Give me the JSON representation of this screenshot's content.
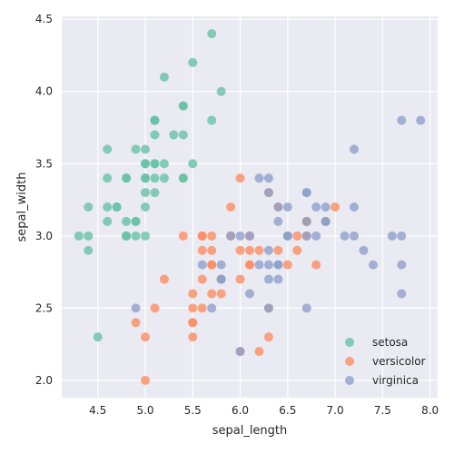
{
  "chart_data": {
    "type": "scatter",
    "xlabel": "sepal_length",
    "ylabel": "sepal_width",
    "xlim": [
      4.12,
      8.08
    ],
    "ylim": [
      1.88,
      4.52
    ],
    "xticks": [
      4.5,
      5.0,
      5.5,
      6.0,
      6.5,
      7.0,
      7.5,
      8.0
    ],
    "xtick_labels": [
      "4.5",
      "5.0",
      "5.5",
      "6.0",
      "6.5",
      "7.0",
      "7.5",
      "8.0"
    ],
    "yticks": [
      2.0,
      2.5,
      3.0,
      3.5,
      4.0,
      4.5
    ],
    "ytick_labels": [
      "2.0",
      "2.5",
      "3.0",
      "3.5",
      "4.0",
      "4.5"
    ],
    "grid": true,
    "background_color": "#eaeaf2",
    "legend": {
      "placement": "lower-right",
      "entries": [
        "setosa",
        "versicolor",
        "virginica"
      ]
    },
    "series": [
      {
        "name": "setosa",
        "color": "#66c2a5",
        "points": [
          [
            5.1,
            3.5
          ],
          [
            4.9,
            3.0
          ],
          [
            4.7,
            3.2
          ],
          [
            4.6,
            3.1
          ],
          [
            5.0,
            3.6
          ],
          [
            5.4,
            3.9
          ],
          [
            4.6,
            3.4
          ],
          [
            5.0,
            3.4
          ],
          [
            4.4,
            2.9
          ],
          [
            4.9,
            3.1
          ],
          [
            5.4,
            3.7
          ],
          [
            4.8,
            3.4
          ],
          [
            4.8,
            3.0
          ],
          [
            4.3,
            3.0
          ],
          [
            5.8,
            4.0
          ],
          [
            5.7,
            4.4
          ],
          [
            5.4,
            3.9
          ],
          [
            5.1,
            3.5
          ],
          [
            5.7,
            3.8
          ],
          [
            5.1,
            3.8
          ],
          [
            5.4,
            3.4
          ],
          [
            5.1,
            3.7
          ],
          [
            4.6,
            3.6
          ],
          [
            5.1,
            3.3
          ],
          [
            4.8,
            3.4
          ],
          [
            5.0,
            3.0
          ],
          [
            5.0,
            3.4
          ],
          [
            5.2,
            3.5
          ],
          [
            5.2,
            3.4
          ],
          [
            4.7,
            3.2
          ],
          [
            4.8,
            3.1
          ],
          [
            5.4,
            3.4
          ],
          [
            5.2,
            4.1
          ],
          [
            5.5,
            4.2
          ],
          [
            4.9,
            3.1
          ],
          [
            5.0,
            3.2
          ],
          [
            5.5,
            3.5
          ],
          [
            4.9,
            3.6
          ],
          [
            4.4,
            3.0
          ],
          [
            5.1,
            3.4
          ],
          [
            5.0,
            3.5
          ],
          [
            4.5,
            2.3
          ],
          [
            4.4,
            3.2
          ],
          [
            5.0,
            3.5
          ],
          [
            5.1,
            3.8
          ],
          [
            4.8,
            3.0
          ],
          [
            5.1,
            3.8
          ],
          [
            4.6,
            3.2
          ],
          [
            5.3,
            3.7
          ],
          [
            5.0,
            3.3
          ]
        ]
      },
      {
        "name": "versicolor",
        "color": "#fc8d62",
        "points": [
          [
            7.0,
            3.2
          ],
          [
            6.4,
            3.2
          ],
          [
            6.9,
            3.1
          ],
          [
            5.5,
            2.3
          ],
          [
            6.5,
            2.8
          ],
          [
            5.7,
            2.8
          ],
          [
            6.3,
            3.3
          ],
          [
            4.9,
            2.4
          ],
          [
            6.6,
            2.9
          ],
          [
            5.2,
            2.7
          ],
          [
            5.0,
            2.0
          ],
          [
            5.9,
            3.0
          ],
          [
            6.0,
            2.2
          ],
          [
            6.1,
            2.9
          ],
          [
            5.6,
            2.9
          ],
          [
            6.7,
            3.1
          ],
          [
            5.6,
            3.0
          ],
          [
            5.8,
            2.7
          ],
          [
            6.2,
            2.2
          ],
          [
            5.6,
            2.5
          ],
          [
            5.9,
            3.2
          ],
          [
            6.1,
            2.8
          ],
          [
            6.3,
            2.5
          ],
          [
            6.1,
            2.8
          ],
          [
            6.4,
            2.9
          ],
          [
            6.6,
            3.0
          ],
          [
            6.8,
            2.8
          ],
          [
            6.7,
            3.0
          ],
          [
            6.0,
            2.9
          ],
          [
            5.7,
            2.6
          ],
          [
            5.5,
            2.4
          ],
          [
            5.5,
            2.4
          ],
          [
            5.8,
            2.7
          ],
          [
            6.0,
            2.7
          ],
          [
            5.4,
            3.0
          ],
          [
            6.0,
            3.4
          ],
          [
            6.7,
            3.1
          ],
          [
            6.3,
            2.3
          ],
          [
            5.6,
            3.0
          ],
          [
            5.5,
            2.5
          ],
          [
            5.5,
            2.6
          ],
          [
            6.1,
            3.0
          ],
          [
            5.8,
            2.6
          ],
          [
            5.0,
            2.3
          ],
          [
            5.6,
            2.7
          ],
          [
            5.7,
            3.0
          ],
          [
            5.7,
            2.9
          ],
          [
            6.2,
            2.9
          ],
          [
            5.1,
            2.5
          ],
          [
            5.7,
            2.8
          ]
        ]
      },
      {
        "name": "virginica",
        "color": "#8da0cb",
        "points": [
          [
            6.3,
            3.3
          ],
          [
            5.8,
            2.7
          ],
          [
            7.1,
            3.0
          ],
          [
            6.3,
            2.9
          ],
          [
            6.5,
            3.0
          ],
          [
            7.6,
            3.0
          ],
          [
            4.9,
            2.5
          ],
          [
            7.3,
            2.9
          ],
          [
            6.7,
            2.5
          ],
          [
            7.2,
            3.6
          ],
          [
            6.5,
            3.2
          ],
          [
            6.4,
            2.7
          ],
          [
            6.8,
            3.0
          ],
          [
            5.7,
            2.5
          ],
          [
            5.8,
            2.8
          ],
          [
            6.4,
            3.2
          ],
          [
            6.5,
            3.0
          ],
          [
            7.7,
            3.8
          ],
          [
            7.7,
            2.6
          ],
          [
            6.0,
            2.2
          ],
          [
            6.9,
            3.2
          ],
          [
            5.6,
            2.8
          ],
          [
            7.7,
            2.8
          ],
          [
            6.3,
            2.7
          ],
          [
            6.7,
            3.3
          ],
          [
            7.2,
            3.2
          ],
          [
            6.2,
            2.8
          ],
          [
            6.1,
            3.0
          ],
          [
            6.4,
            2.8
          ],
          [
            7.2,
            3.0
          ],
          [
            7.4,
            2.8
          ],
          [
            7.9,
            3.8
          ],
          [
            6.4,
            2.8
          ],
          [
            6.3,
            2.8
          ],
          [
            6.1,
            2.6
          ],
          [
            7.7,
            3.0
          ],
          [
            6.3,
            3.4
          ],
          [
            6.4,
            3.1
          ],
          [
            6.0,
            3.0
          ],
          [
            6.9,
            3.1
          ],
          [
            6.7,
            3.1
          ],
          [
            6.9,
            3.1
          ],
          [
            5.8,
            2.7
          ],
          [
            6.8,
            3.2
          ],
          [
            6.7,
            3.3
          ],
          [
            6.7,
            3.0
          ],
          [
            6.3,
            2.5
          ],
          [
            6.5,
            3.0
          ],
          [
            6.2,
            3.4
          ],
          [
            5.9,
            3.0
          ]
        ]
      }
    ]
  }
}
